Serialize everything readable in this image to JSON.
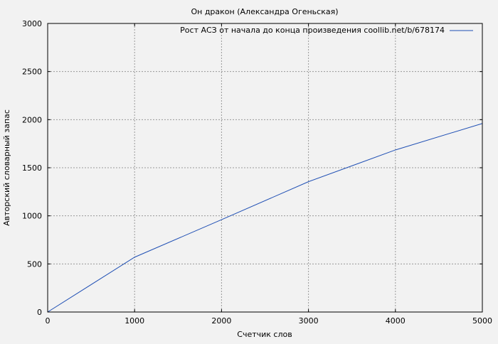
{
  "chart_data": {
    "type": "line",
    "title": "Он дракон (Александра Огеньская)",
    "xlabel": "Счетчик слов",
    "ylabel": "Авторский словарный запас",
    "xlim": [
      0,
      5000
    ],
    "ylim": [
      0,
      3000
    ],
    "xticks": [
      0,
      1000,
      2000,
      3000,
      4000,
      5000
    ],
    "yticks": [
      0,
      500,
      1000,
      1500,
      2000,
      2500,
      3000
    ],
    "grid": true,
    "legend_position": "top-right",
    "series": [
      {
        "name": "Рост АСЗ от начала до конца произведения coollib.net/b/678174",
        "color": "#1f4fb4",
        "x": [
          0,
          1000,
          2000,
          3000,
          4000,
          5000
        ],
        "y": [
          0,
          570,
          960,
          1355,
          1685,
          1960
        ]
      }
    ]
  }
}
